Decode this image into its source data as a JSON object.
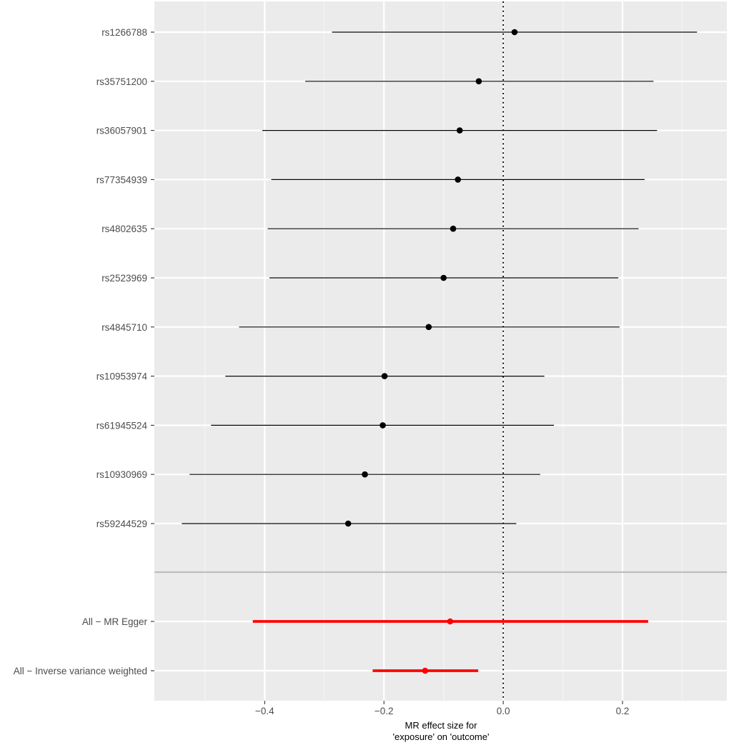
{
  "chart_data": {
    "type": "forest",
    "xlabel_line1": "MR effect size for",
    "xlabel_line2": "'exposure' on 'outcome'",
    "xlim": [
      -0.585,
      0.375
    ],
    "xticks": [
      -0.4,
      -0.2,
      0.0,
      0.2
    ],
    "xtick_labels": [
      "−0.4",
      "−0.2",
      "0.0",
      "0.2"
    ],
    "reference_line": 0.0,
    "snps": [
      {
        "label": "rs1266788",
        "b": 0.019,
        "lo": -0.287,
        "hi": 0.325
      },
      {
        "label": "rs35751200",
        "b": -0.041,
        "lo": -0.332,
        "hi": 0.252
      },
      {
        "label": "rs36057901",
        "b": -0.073,
        "lo": -0.404,
        "hi": 0.258
      },
      {
        "label": "rs77354939",
        "b": -0.076,
        "lo": -0.389,
        "hi": 0.237
      },
      {
        "label": "rs4802635",
        "b": -0.084,
        "lo": -0.395,
        "hi": 0.227
      },
      {
        "label": "rs2523969",
        "b": -0.1,
        "lo": -0.392,
        "hi": 0.193
      },
      {
        "label": "rs4845710",
        "b": -0.125,
        "lo": -0.443,
        "hi": 0.195
      },
      {
        "label": "rs10953974",
        "b": -0.199,
        "lo": -0.466,
        "hi": 0.069
      },
      {
        "label": "rs61945524",
        "b": -0.202,
        "lo": -0.49,
        "hi": 0.085
      },
      {
        "label": "rs10930969",
        "b": -0.232,
        "lo": -0.526,
        "hi": 0.062
      },
      {
        "label": "rs59244529",
        "b": -0.26,
        "lo": -0.539,
        "hi": 0.022
      }
    ],
    "summary": [
      {
        "label": "All − MR Egger",
        "b": -0.089,
        "lo": -0.42,
        "hi": 0.243
      },
      {
        "label": "All − Inverse variance weighted",
        "b": -0.131,
        "lo": -0.219,
        "hi": -0.042
      }
    ],
    "colors": {
      "panel": "#ebebeb",
      "grid_major": "#ffffff",
      "grid_minor": "#f5f5f5",
      "snp": "#000000",
      "summary": "#ff0000",
      "separator": "#bebebe"
    }
  }
}
